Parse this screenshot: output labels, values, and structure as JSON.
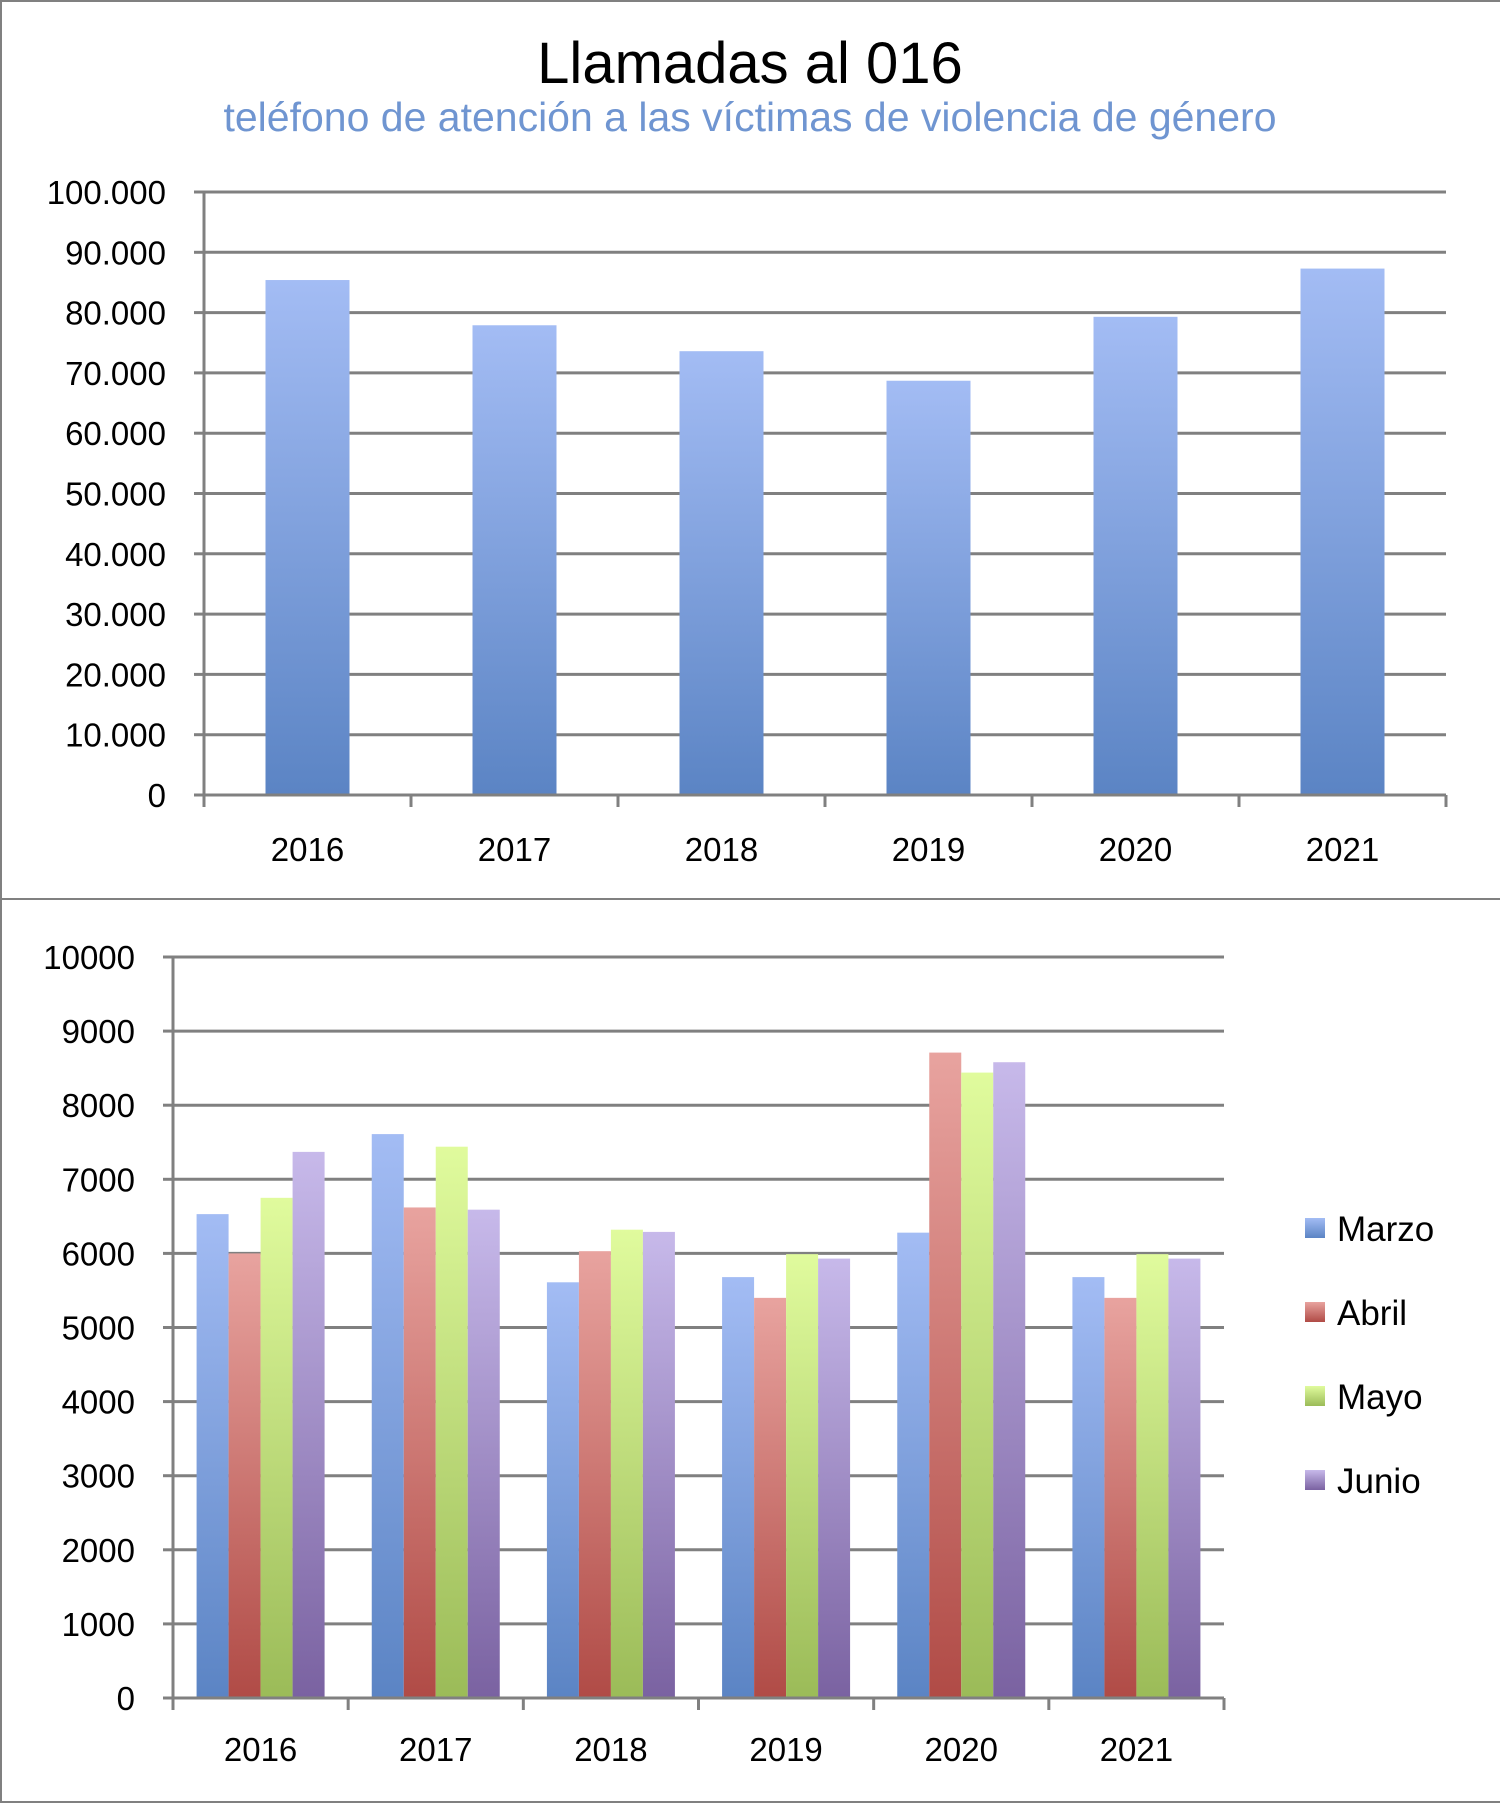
{
  "chart_data": [
    {
      "type": "bar",
      "title": "Llamadas al 016",
      "subtitle": "teléfono de atención a las víctimas de violencia de género",
      "categories": [
        "2016",
        "2017",
        "2018",
        "2019",
        "2020",
        "2021"
      ],
      "values": [
        85400,
        77900,
        73600,
        68700,
        79300,
        87300
      ],
      "ylim": [
        0,
        100000
      ],
      "yticks": [
        "0",
        "10.000",
        "20.000",
        "30.000",
        "40.000",
        "50.000",
        "60.000",
        "70.000",
        "80.000",
        "90.000",
        "100.000"
      ],
      "grid": true,
      "colors": {
        "bar_top": "#a3bcf4",
        "bar_bottom": "#5b84c4"
      }
    },
    {
      "type": "bar",
      "categories": [
        "2016",
        "2017",
        "2018",
        "2019",
        "2020",
        "2021"
      ],
      "series": [
        {
          "name": "Marzo",
          "values": [
            6530,
            7610,
            5610,
            5680,
            6280,
            5680
          ],
          "colors": {
            "top": "#a3bcf4",
            "bottom": "#5b84c4"
          }
        },
        {
          "name": "Abril",
          "values": [
            6000,
            6620,
            6030,
            5400,
            8710,
            5400
          ],
          "colors": {
            "top": "#e8a39f",
            "bottom": "#b04b46"
          }
        },
        {
          "name": "Mayo",
          "values": [
            6750,
            7440,
            6320,
            5990,
            8440,
            5990
          ],
          "colors": {
            "top": "#e0fb9d",
            "bottom": "#9bbb58"
          }
        },
        {
          "name": "Junio",
          "values": [
            7370,
            6590,
            6290,
            5930,
            8580,
            5930
          ],
          "colors": {
            "top": "#c7b9ea",
            "bottom": "#7a62a1"
          }
        }
      ],
      "ylim": [
        0,
        10000
      ],
      "yticks": [
        "0",
        "1000",
        "2000",
        "3000",
        "4000",
        "5000",
        "6000",
        "7000",
        "8000",
        "9000",
        "10000"
      ],
      "grid": true,
      "legend": "right"
    }
  ]
}
